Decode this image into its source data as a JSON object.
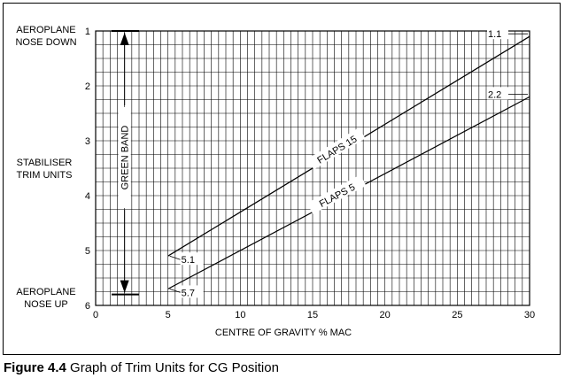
{
  "figure": {
    "number": "Figure 4.4",
    "caption": "Graph of Trim Units for CG Position"
  },
  "labels": {
    "top_left": [
      "AEROPLANE",
      "NOSE DOWN"
    ],
    "middle_left": [
      "STABILISER",
      "TRIM UNITS"
    ],
    "bottom_left": [
      "AEROPLANE",
      "NOSE UP"
    ],
    "band": "GREEN BAND"
  },
  "chart_data": {
    "type": "line",
    "xlabel": "CENTRE OF GRAVITY % MAC",
    "ylabel": "",
    "xlim": [
      0,
      30
    ],
    "ylim": [
      1,
      6
    ],
    "y_inverted": true,
    "x_ticks": [
      "0",
      "5",
      "10",
      "15",
      "20",
      "25",
      "30"
    ],
    "y_ticks": [
      "1",
      "2",
      "3",
      "4",
      "5",
      "6"
    ],
    "grid": true,
    "series": [
      {
        "name": "FLAPS 15",
        "points": [
          [
            5,
            5.1
          ],
          [
            30,
            1.1
          ]
        ],
        "start_label": "5.1",
        "end_label": "1.1"
      },
      {
        "name": "FLAPS 5",
        "points": [
          [
            5,
            5.7
          ],
          [
            30,
            2.2
          ]
        ],
        "start_label": "5.7",
        "end_label": "2.2"
      }
    ],
    "green_band": {
      "x_range": [
        0,
        3
      ],
      "y_range": [
        1,
        5.8
      ]
    }
  }
}
